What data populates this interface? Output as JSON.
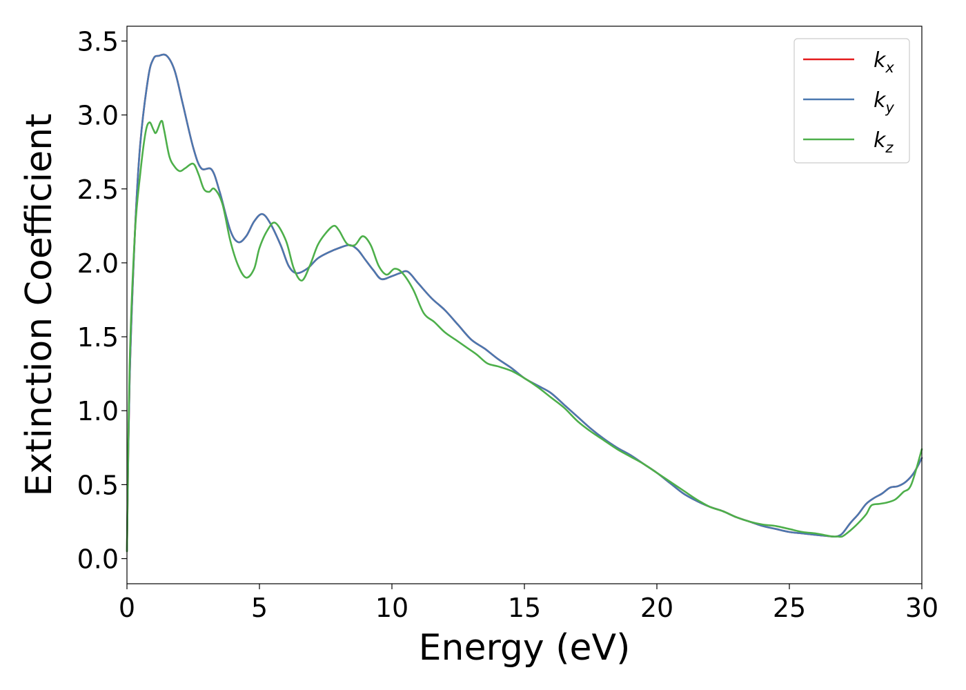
{
  "chart_data": {
    "type": "line",
    "xlabel": "Energy (eV)",
    "ylabel": "Extinction Coefficient",
    "xlim": [
      0,
      30
    ],
    "ylim": [
      -0.17,
      3.6
    ],
    "xticks": [
      0,
      5,
      10,
      15,
      20,
      25,
      30
    ],
    "yticks": [
      0.0,
      0.5,
      1.0,
      1.5,
      2.0,
      2.5,
      3.0,
      3.5
    ],
    "xtick_labels": [
      "0",
      "5",
      "10",
      "15",
      "20",
      "25",
      "30"
    ],
    "ytick_labels": [
      "0.0",
      "0.5",
      "1.0",
      "1.5",
      "2.0",
      "2.5",
      "3.0",
      "3.5"
    ],
    "grid": false,
    "legend_position": "top-right",
    "series": [
      {
        "name": "k_x",
        "label_base": "k",
        "label_sub": "x",
        "color": "#e41a1c",
        "x": [
          0,
          0.1,
          0.3,
          0.5,
          0.8,
          1.0,
          1.2,
          1.5,
          1.8,
          2.1,
          2.5,
          2.8,
          3.2,
          3.5,
          3.9,
          4.2,
          4.5,
          4.8,
          5.1,
          5.4,
          5.8,
          6.1,
          6.4,
          6.8,
          7.2,
          7.6,
          8.0,
          8.4,
          8.7,
          9.0,
          9.3,
          9.6,
          10.0,
          10.3,
          10.6,
          11.0,
          11.5,
          12.0,
          12.5,
          13.0,
          13.5,
          14.0,
          14.5,
          15.0,
          15.5,
          16.0,
          16.5,
          17.0,
          17.5,
          18.0,
          18.5,
          19.0,
          19.5,
          20.0,
          20.5,
          21.0,
          21.5,
          22.0,
          22.5,
          23.0,
          23.5,
          24.0,
          24.5,
          25.0,
          25.5,
          26.0,
          26.3,
          26.6,
          26.8,
          27.0,
          27.3,
          27.6,
          27.9,
          28.2,
          28.5,
          28.8,
          29.1,
          29.4,
          29.7,
          30.0
        ],
        "values": [
          0.05,
          1.2,
          2.2,
          2.8,
          3.25,
          3.38,
          3.4,
          3.4,
          3.3,
          3.08,
          2.78,
          2.64,
          2.63,
          2.48,
          2.22,
          2.14,
          2.18,
          2.28,
          2.33,
          2.27,
          2.12,
          1.98,
          1.93,
          1.96,
          2.03,
          2.07,
          2.1,
          2.12,
          2.09,
          2.02,
          1.95,
          1.89,
          1.91,
          1.93,
          1.94,
          1.86,
          1.76,
          1.68,
          1.58,
          1.48,
          1.42,
          1.35,
          1.29,
          1.22,
          1.17,
          1.12,
          1.04,
          0.96,
          0.88,
          0.81,
          0.75,
          0.7,
          0.64,
          0.58,
          0.51,
          0.44,
          0.39,
          0.35,
          0.32,
          0.28,
          0.25,
          0.22,
          0.2,
          0.18,
          0.17,
          0.16,
          0.155,
          0.15,
          0.15,
          0.17,
          0.24,
          0.3,
          0.37,
          0.41,
          0.44,
          0.48,
          0.49,
          0.52,
          0.58,
          0.68
        ]
      },
      {
        "name": "k_y",
        "label_base": "k",
        "label_sub": "y",
        "color": "#4a78b0",
        "x": [
          0,
          0.1,
          0.3,
          0.5,
          0.8,
          1.0,
          1.2,
          1.5,
          1.8,
          2.1,
          2.5,
          2.8,
          3.2,
          3.5,
          3.9,
          4.2,
          4.5,
          4.8,
          5.1,
          5.4,
          5.8,
          6.1,
          6.4,
          6.8,
          7.2,
          7.6,
          8.0,
          8.4,
          8.7,
          9.0,
          9.3,
          9.6,
          10.0,
          10.3,
          10.6,
          11.0,
          11.5,
          12.0,
          12.5,
          13.0,
          13.5,
          14.0,
          14.5,
          15.0,
          15.5,
          16.0,
          16.5,
          17.0,
          17.5,
          18.0,
          18.5,
          19.0,
          19.5,
          20.0,
          20.5,
          21.0,
          21.5,
          22.0,
          22.5,
          23.0,
          23.5,
          24.0,
          24.5,
          25.0,
          25.5,
          26.0,
          26.3,
          26.6,
          26.8,
          27.0,
          27.3,
          27.6,
          27.9,
          28.2,
          28.5,
          28.8,
          29.1,
          29.4,
          29.7,
          30.0
        ],
        "values": [
          0.05,
          1.2,
          2.2,
          2.8,
          3.25,
          3.38,
          3.4,
          3.4,
          3.3,
          3.08,
          2.78,
          2.64,
          2.63,
          2.48,
          2.22,
          2.14,
          2.18,
          2.28,
          2.33,
          2.27,
          2.12,
          1.98,
          1.93,
          1.96,
          2.03,
          2.07,
          2.1,
          2.12,
          2.09,
          2.02,
          1.95,
          1.89,
          1.91,
          1.93,
          1.94,
          1.86,
          1.76,
          1.68,
          1.58,
          1.48,
          1.42,
          1.35,
          1.29,
          1.22,
          1.17,
          1.12,
          1.04,
          0.96,
          0.88,
          0.81,
          0.75,
          0.7,
          0.64,
          0.58,
          0.51,
          0.44,
          0.39,
          0.35,
          0.32,
          0.28,
          0.25,
          0.22,
          0.2,
          0.18,
          0.17,
          0.16,
          0.155,
          0.15,
          0.15,
          0.17,
          0.24,
          0.3,
          0.37,
          0.41,
          0.44,
          0.48,
          0.49,
          0.52,
          0.58,
          0.68
        ]
      },
      {
        "name": "k_z",
        "label_base": "k",
        "label_sub": "z",
        "color": "#4daf4a",
        "x": [
          0,
          0.1,
          0.3,
          0.5,
          0.7,
          0.85,
          1.0,
          1.1,
          1.3,
          1.4,
          1.6,
          1.8,
          2.0,
          2.2,
          2.5,
          2.7,
          2.9,
          3.1,
          3.3,
          3.6,
          3.9,
          4.2,
          4.5,
          4.8,
          5.0,
          5.3,
          5.6,
          6.0,
          6.3,
          6.6,
          6.9,
          7.2,
          7.5,
          7.8,
          8.0,
          8.3,
          8.6,
          8.9,
          9.2,
          9.5,
          9.8,
          10.1,
          10.4,
          10.8,
          11.2,
          11.6,
          12.0,
          12.4,
          12.8,
          13.2,
          13.6,
          14.0,
          14.5,
          15.0,
          15.5,
          16.0,
          16.5,
          17.0,
          17.5,
          18.0,
          18.5,
          19.0,
          19.5,
          20.0,
          20.5,
          21.0,
          21.5,
          22.0,
          22.5,
          23.0,
          23.5,
          24.0,
          24.5,
          25.0,
          25.5,
          26.0,
          26.3,
          26.6,
          26.8,
          27.0,
          27.3,
          27.6,
          27.9,
          28.1,
          28.4,
          28.7,
          29.0,
          29.3,
          29.6,
          30.0
        ],
        "values": [
          0.05,
          1.3,
          2.2,
          2.6,
          2.88,
          2.95,
          2.9,
          2.88,
          2.96,
          2.9,
          2.72,
          2.65,
          2.62,
          2.64,
          2.67,
          2.6,
          2.5,
          2.48,
          2.5,
          2.4,
          2.15,
          1.98,
          1.9,
          1.96,
          2.1,
          2.22,
          2.27,
          2.15,
          1.96,
          1.88,
          1.98,
          2.12,
          2.2,
          2.25,
          2.22,
          2.13,
          2.12,
          2.18,
          2.12,
          1.98,
          1.92,
          1.96,
          1.93,
          1.82,
          1.66,
          1.6,
          1.53,
          1.48,
          1.43,
          1.38,
          1.32,
          1.3,
          1.27,
          1.22,
          1.16,
          1.09,
          1.02,
          0.93,
          0.86,
          0.8,
          0.74,
          0.69,
          0.64,
          0.58,
          0.52,
          0.46,
          0.4,
          0.35,
          0.32,
          0.28,
          0.25,
          0.23,
          0.22,
          0.2,
          0.18,
          0.17,
          0.16,
          0.15,
          0.15,
          0.15,
          0.19,
          0.24,
          0.3,
          0.36,
          0.37,
          0.38,
          0.4,
          0.45,
          0.5,
          0.74
        ]
      }
    ]
  }
}
